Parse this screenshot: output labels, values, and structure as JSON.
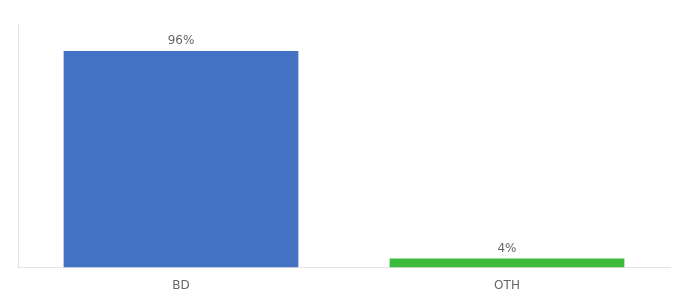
{
  "chart_data": {
    "type": "bar",
    "categories": [
      "BD",
      "OTH"
    ],
    "values": [
      96,
      4
    ],
    "value_labels": [
      "96%",
      "4%"
    ],
    "colors": [
      "#4472c4",
      "#3dbb3d"
    ],
    "ylim": [
      0,
      108
    ],
    "grid": false,
    "tick_labels": "x",
    "data_labels": true
  }
}
